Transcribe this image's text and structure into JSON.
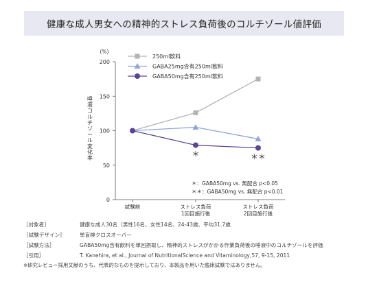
{
  "title": "健康な成人男女への精神的ストレス負荷後のコルチゾール値評価",
  "chart_data": {
    "type": "line",
    "categories": [
      "試験前",
      "ストレス負荷\n1回目施行後",
      "ストレス負荷\n2回目施行後"
    ],
    "series": [
      {
        "name": "250ml飲料",
        "values": [
          100,
          126,
          175
        ],
        "color": "#b3b3b3",
        "marker": "square"
      },
      {
        "name": "GABA25mg含有250ml飲料",
        "values": [
          100,
          105,
          88
        ],
        "color": "#8fa6d6",
        "marker": "triangle"
      },
      {
        "name": "GABA50mg含有250ml飲料",
        "values": [
          100,
          79,
          75
        ],
        "color": "#5a4496",
        "marker": "circle"
      }
    ],
    "ylim": [
      0,
      200
    ],
    "yticks": [
      0,
      50,
      100,
      150,
      200
    ],
    "yunit": "(%)",
    "ylabel": "唾液コルチゾール変化率",
    "significance": [
      "＊",
      "＊＊"
    ],
    "significance_notes": [
      "＊：GABA50mg vs. 無配合 p<0.05",
      "＊＊：GABA50mg vs. 無配合 p<0.01"
    ],
    "legend_position": "top-right"
  },
  "notes": [
    {
      "label": "［対象者］",
      "value": "健康な成人30名（男性16名、女性14名、24-43歳、平均31.7歳"
    },
    {
      "label": "［試験デザイン］",
      "value": "単盲検クロスオーバー"
    },
    {
      "label": "［試験方法］",
      "value": "GABA50mg含有飲料を単回摂取し、精神的ストレスがかかる作業負荷後の唾液中のコルチゾールを評価"
    },
    {
      "label": "［引用］",
      "value": "T. Kanehira, et al., Journal of NutritionalScience and Vitaminology,57, 9-15, 2011"
    }
  ],
  "footnote": "※研究レビュー採用文献のうち、代表的なものを提示しており、本製品を用いた臨床試験ではありません。"
}
